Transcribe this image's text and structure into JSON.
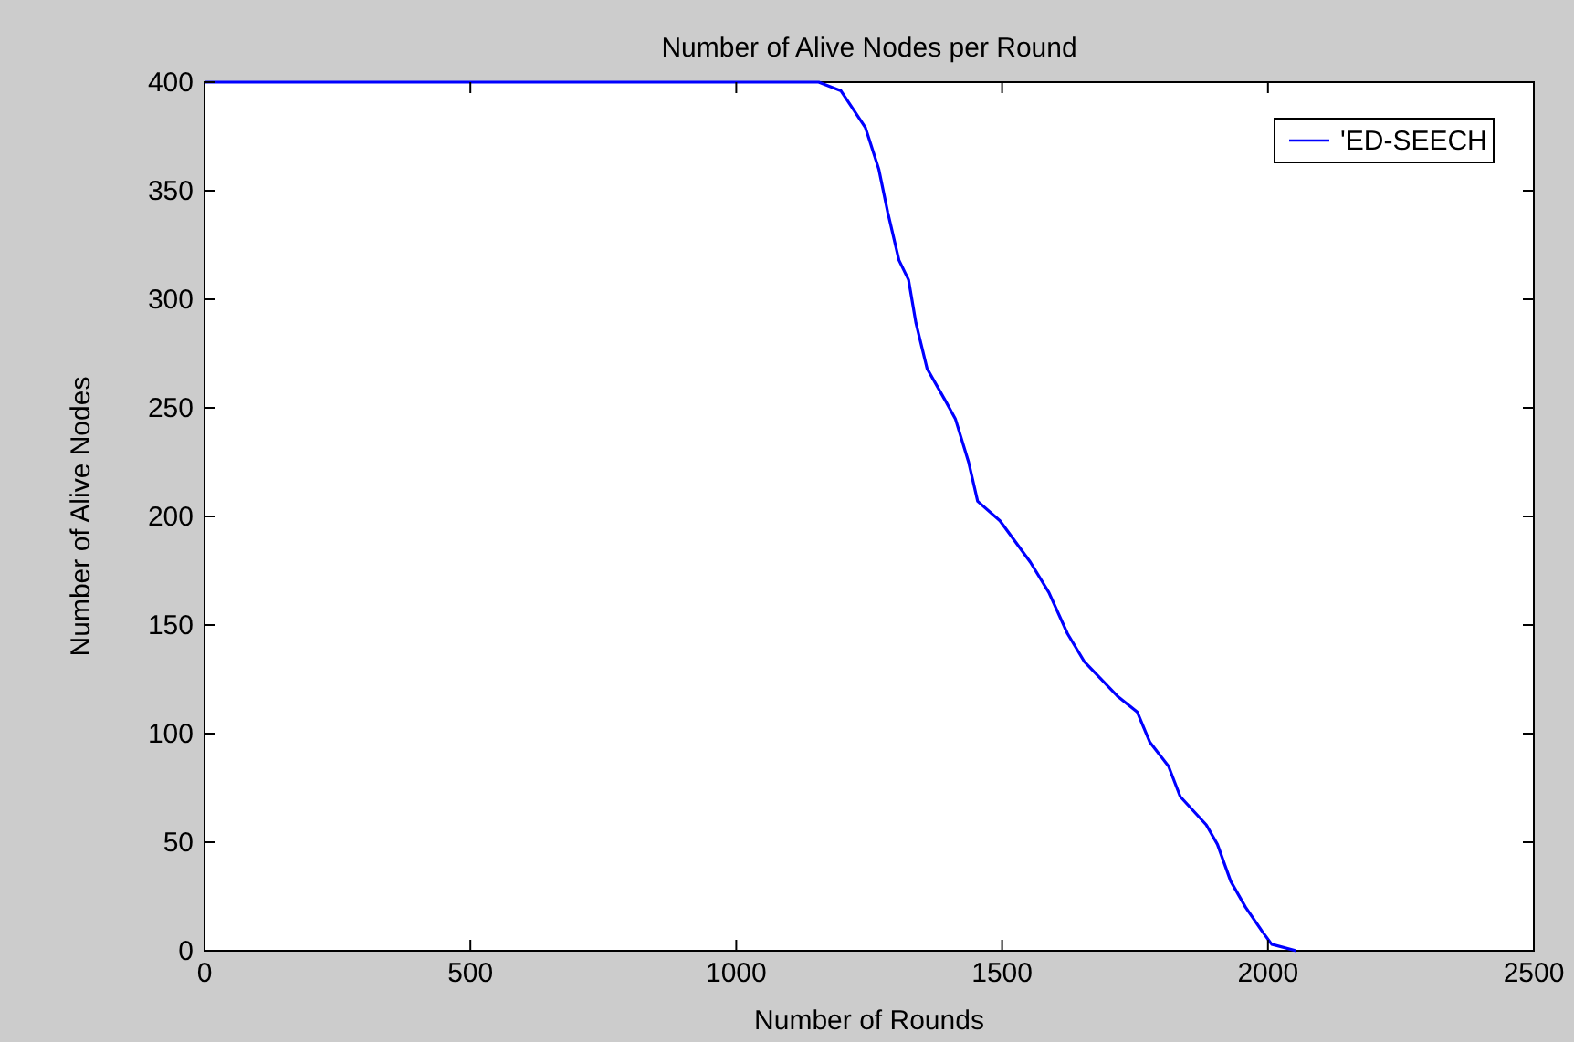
{
  "chart_data": {
    "type": "line",
    "title": "Number of Alive Nodes per Round",
    "xlabel": "Number of Rounds",
    "ylabel": "Number of Alive Nodes",
    "xlim": [
      0,
      2500
    ],
    "xticks": [
      0,
      500,
      1000,
      1500,
      2000,
      2500
    ],
    "ylim": [
      0,
      400
    ],
    "yticks": [
      0,
      50,
      100,
      150,
      200,
      250,
      300,
      350,
      400
    ],
    "legend": "top right",
    "grid": false,
    "series": [
      {
        "name": "'ED-SEECH",
        "color": "#0000ff",
        "x": [
          0,
          1155,
          1197,
          1243,
          1268,
          1285,
          1306,
          1324,
          1338,
          1359,
          1394,
          1412,
          1437,
          1454,
          1496,
          1553,
          1588,
          1623,
          1655,
          1718,
          1754,
          1778,
          1813,
          1835,
          1884,
          1905,
          1930,
          1958,
          1989,
          2007,
          2053
        ],
        "values": [
          400,
          400,
          396,
          379,
          360,
          340,
          318,
          309,
          289,
          268,
          253,
          245,
          225,
          207,
          198,
          179,
          165,
          146,
          133,
          117,
          110,
          96,
          85,
          71,
          58,
          49,
          32,
          20,
          9,
          3,
          0
        ]
      }
    ]
  }
}
